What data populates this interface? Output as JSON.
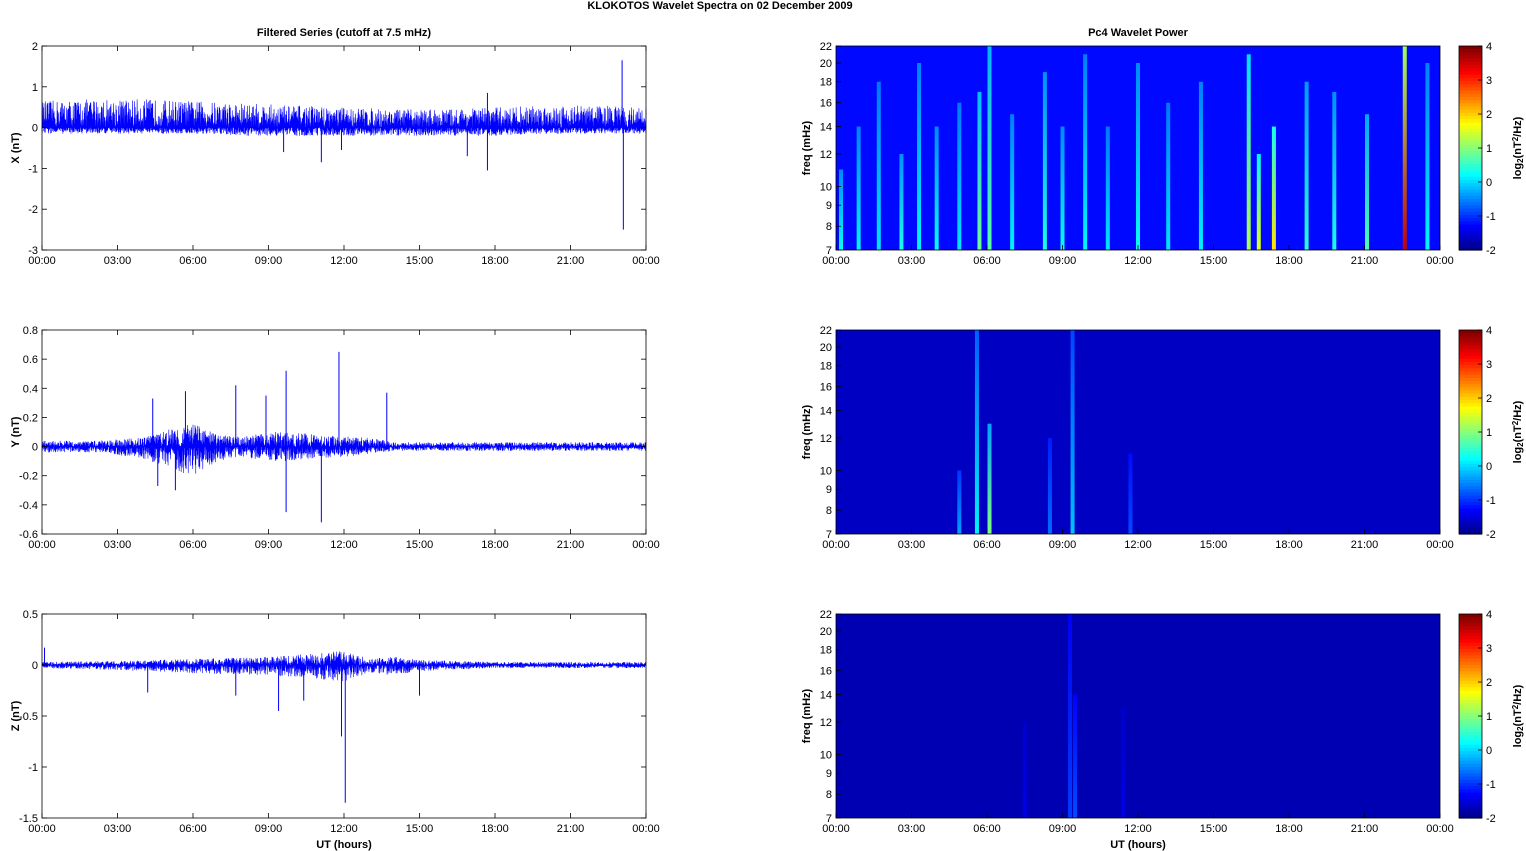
{
  "figure": {
    "title": "KLOKOTOS Wavelet Spectra on 02 December  2009",
    "left_title": "Filtered Series (cutoff at 7.5 mHz)",
    "right_title": "Pc4 Wavelet Power",
    "xlabel": "UT (hours)",
    "freq_label": "freq (mHz)",
    "colorbar_label_main": "log",
    "colorbar_label_sub": "2",
    "colorbar_label_tail": "(nT",
    "colorbar_label_sup": "2",
    "colorbar_label_end": "/Hz)"
  },
  "colors": {
    "trace": "#0000ff",
    "background_power": "#00008f",
    "axes": "#000000"
  },
  "chart_data": [
    {
      "type": "line",
      "panel": "X",
      "ylabel": "X (nT)",
      "xlim": [
        0,
        24
      ],
      "ylim": [
        -3,
        2
      ],
      "x_ticks": [
        "00:00",
        "03:00",
        "06:00",
        "09:00",
        "12:00",
        "15:00",
        "18:00",
        "21:00",
        "00:00"
      ],
      "y_ticks": [
        "2",
        "1",
        "0",
        "-1",
        "-2",
        "-3"
      ],
      "y_tick_values": [
        2,
        1,
        0,
        -1,
        -2,
        -3
      ],
      "noise_envelope": {
        "x": [
          0,
          2,
          4,
          6,
          8,
          10,
          12,
          14,
          16,
          18,
          20,
          22,
          24
        ],
        "upper": [
          0.65,
          0.7,
          0.7,
          0.65,
          0.6,
          0.55,
          0.5,
          0.45,
          0.45,
          0.5,
          0.55,
          0.55,
          0.5
        ],
        "lower": [
          -0.15,
          -0.15,
          -0.15,
          -0.15,
          -0.2,
          -0.2,
          -0.2,
          -0.2,
          -0.2,
          -0.2,
          -0.15,
          -0.15,
          -0.15
        ]
      },
      "spikes": [
        {
          "x": 9.6,
          "y": -0.6
        },
        {
          "x": 11.1,
          "y": -0.85
        },
        {
          "x": 11.9,
          "y": -0.55
        },
        {
          "x": 16.9,
          "y": -0.7
        },
        {
          "x": 17.7,
          "y": -1.05
        },
        {
          "x": 17.7,
          "y": 0.85
        },
        {
          "x": 23.05,
          "y": 1.65
        },
        {
          "x": 23.1,
          "y": -2.5
        }
      ]
    },
    {
      "type": "line",
      "panel": "Y",
      "ylabel": "Y (nT)",
      "xlim": [
        0,
        24
      ],
      "ylim": [
        -0.6,
        0.8
      ],
      "x_ticks": [
        "00:00",
        "03:00",
        "06:00",
        "09:00",
        "12:00",
        "15:00",
        "18:00",
        "21:00",
        "00:00"
      ],
      "y_ticks": [
        "0.8",
        "0.6",
        "0.4",
        "0.2",
        "0",
        "-0.2",
        "-0.4",
        "-0.6"
      ],
      "y_tick_values": [
        0.8,
        0.6,
        0.4,
        0.2,
        0,
        -0.2,
        -0.4,
        -0.6
      ],
      "noise_envelope": {
        "x": [
          0,
          2,
          4,
          5,
          6,
          7,
          8,
          9,
          10,
          11,
          12,
          13,
          14,
          16,
          18,
          20,
          22,
          24
        ],
        "upper": [
          0.04,
          0.04,
          0.06,
          0.12,
          0.16,
          0.08,
          0.07,
          0.1,
          0.1,
          0.08,
          0.07,
          0.06,
          0.03,
          0.03,
          0.03,
          0.03,
          0.03,
          0.03
        ],
        "lower": [
          -0.04,
          -0.04,
          -0.08,
          -0.15,
          -0.2,
          -0.1,
          -0.07,
          -0.1,
          -0.1,
          -0.08,
          -0.07,
          -0.05,
          -0.03,
          -0.03,
          -0.03,
          -0.03,
          -0.03,
          -0.03
        ]
      },
      "spikes": [
        {
          "x": 4.4,
          "y": 0.33
        },
        {
          "x": 4.6,
          "y": -0.27
        },
        {
          "x": 5.3,
          "y": -0.3
        },
        {
          "x": 5.7,
          "y": 0.38
        },
        {
          "x": 7.7,
          "y": 0.42
        },
        {
          "x": 8.9,
          "y": 0.35
        },
        {
          "x": 9.7,
          "y": 0.52
        },
        {
          "x": 9.7,
          "y": -0.45
        },
        {
          "x": 11.1,
          "y": -0.52
        },
        {
          "x": 11.8,
          "y": 0.65
        },
        {
          "x": 13.7,
          "y": 0.37
        }
      ]
    },
    {
      "type": "line",
      "panel": "Z",
      "ylabel": "Z (nT)",
      "xlim": [
        0,
        24
      ],
      "ylim": [
        -1.5,
        0.5
      ],
      "x_ticks": [
        "00:00",
        "03:00",
        "06:00",
        "09:00",
        "12:00",
        "15:00",
        "18:00",
        "21:00",
        "00:00"
      ],
      "y_ticks": [
        "0.5",
        "0",
        "-0.5",
        "-1",
        "-1.5"
      ],
      "y_tick_values": [
        0.5,
        0,
        -0.5,
        -1,
        -1.5
      ],
      "noise_envelope": {
        "x": [
          0,
          3,
          6,
          9,
          11,
          12,
          13,
          14,
          15,
          18,
          21,
          24
        ],
        "upper": [
          0.03,
          0.04,
          0.06,
          0.08,
          0.12,
          0.14,
          0.06,
          0.08,
          0.05,
          0.03,
          0.03,
          0.03
        ],
        "lower": [
          -0.03,
          -0.05,
          -0.08,
          -0.1,
          -0.14,
          -0.16,
          -0.08,
          -0.1,
          -0.06,
          -0.03,
          -0.03,
          -0.03
        ]
      },
      "spikes": [
        {
          "x": 0.1,
          "y": 0.17
        },
        {
          "x": 4.2,
          "y": -0.27
        },
        {
          "x": 7.7,
          "y": -0.3
        },
        {
          "x": 9.4,
          "y": -0.45
        },
        {
          "x": 10.4,
          "y": -0.35
        },
        {
          "x": 11.9,
          "y": -0.7
        },
        {
          "x": 12.05,
          "y": -1.35
        },
        {
          "x": 15.0,
          "y": -0.3
        }
      ]
    },
    {
      "type": "heatmap",
      "panel": "X power",
      "ylabel": "freq (mHz)",
      "xlim": [
        0,
        24
      ],
      "ylim": [
        7,
        22
      ],
      "y_ticks": [
        "22",
        "20",
        "18",
        "16",
        "14",
        "12",
        "10",
        "9",
        "8",
        "7"
      ],
      "y_tick_values": [
        22,
        20,
        18,
        16,
        14,
        12,
        10,
        9,
        8,
        7
      ],
      "x_ticks": [
        "00:00",
        "03:00",
        "06:00",
        "09:00",
        "12:00",
        "15:00",
        "18:00",
        "21:00",
        "00:00"
      ],
      "colorbar": {
        "ticks": [
          "4",
          "3",
          "2",
          "1",
          "0",
          "-1",
          "-2"
        ],
        "tick_values": [
          4,
          3,
          2,
          1,
          0,
          -1,
          -2
        ],
        "range": [
          -2,
          4
        ]
      },
      "background": -1.2,
      "streaks": [
        {
          "t": 0.2,
          "level": 0.3,
          "fmax": 11
        },
        {
          "t": 0.9,
          "level": 0.2,
          "fmax": 14
        },
        {
          "t": 1.7,
          "level": 0.1,
          "fmax": 18
        },
        {
          "t": 2.6,
          "level": 0.4,
          "fmax": 12
        },
        {
          "t": 3.3,
          "level": 0.2,
          "fmax": 20
        },
        {
          "t": 4.0,
          "level": 0.3,
          "fmax": 14
        },
        {
          "t": 4.9,
          "level": 0.1,
          "fmax": 16
        },
        {
          "t": 5.7,
          "level": 0.9,
          "fmax": 17
        },
        {
          "t": 6.1,
          "level": 0.8,
          "fmax": 22
        },
        {
          "t": 7.0,
          "level": 0.2,
          "fmax": 15
        },
        {
          "t": 8.3,
          "level": 0.4,
          "fmax": 19
        },
        {
          "t": 9.0,
          "level": 0.3,
          "fmax": 14
        },
        {
          "t": 9.9,
          "level": 0.2,
          "fmax": 21
        },
        {
          "t": 10.8,
          "level": 0.1,
          "fmax": 14
        },
        {
          "t": 12.0,
          "level": 0.3,
          "fmax": 20
        },
        {
          "t": 13.2,
          "level": 0.1,
          "fmax": 16
        },
        {
          "t": 14.5,
          "level": 0.2,
          "fmax": 18
        },
        {
          "t": 16.4,
          "level": 1.3,
          "fmax": 21
        },
        {
          "t": 16.8,
          "level": 1.6,
          "fmax": 12
        },
        {
          "t": 17.4,
          "level": 1.9,
          "fmax": 14
        },
        {
          "t": 18.7,
          "level": 0.5,
          "fmax": 18
        },
        {
          "t": 19.8,
          "level": 0.4,
          "fmax": 17
        },
        {
          "t": 21.1,
          "level": 0.7,
          "fmax": 15
        },
        {
          "t": 22.6,
          "level": 3.6,
          "fmax": 22
        },
        {
          "t": 23.5,
          "level": 0.2,
          "fmax": 20
        }
      ]
    },
    {
      "type": "heatmap",
      "panel": "Y power",
      "ylabel": "freq (mHz)",
      "xlim": [
        0,
        24
      ],
      "ylim": [
        7,
        22
      ],
      "y_ticks": [
        "22",
        "20",
        "18",
        "16",
        "14",
        "12",
        "10",
        "9",
        "8",
        "7"
      ],
      "y_tick_values": [
        22,
        20,
        18,
        16,
        14,
        12,
        10,
        9,
        8,
        7
      ],
      "x_ticks": [
        "00:00",
        "03:00",
        "06:00",
        "09:00",
        "12:00",
        "15:00",
        "18:00",
        "21:00",
        "00:00"
      ],
      "colorbar": {
        "ticks": [
          "4",
          "3",
          "2",
          "1",
          "0",
          "-1",
          "-2"
        ],
        "tick_values": [
          4,
          3,
          2,
          1,
          0,
          -1,
          -2
        ],
        "range": [
          -2,
          4
        ]
      },
      "background": -1.6,
      "streaks": [
        {
          "t": 4.9,
          "level": -0.3,
          "fmax": 10
        },
        {
          "t": 5.6,
          "level": 0.2,
          "fmax": 22
        },
        {
          "t": 6.1,
          "level": 1.0,
          "fmax": 13
        },
        {
          "t": 8.5,
          "level": -0.6,
          "fmax": 12
        },
        {
          "t": 9.4,
          "level": -0.1,
          "fmax": 22
        },
        {
          "t": 11.7,
          "level": -0.8,
          "fmax": 11
        }
      ]
    },
    {
      "type": "heatmap",
      "panel": "Z power",
      "ylabel": "freq (mHz)",
      "xlim": [
        0,
        24
      ],
      "ylim": [
        7,
        22
      ],
      "y_ticks": [
        "22",
        "20",
        "18",
        "16",
        "14",
        "12",
        "10",
        "9",
        "8",
        "7"
      ],
      "y_tick_values": [
        22,
        20,
        18,
        16,
        14,
        12,
        10,
        9,
        8,
        7
      ],
      "x_ticks": [
        "00:00",
        "03:00",
        "06:00",
        "09:00",
        "12:00",
        "15:00",
        "18:00",
        "21:00",
        "00:00"
      ],
      "colorbar": {
        "ticks": [
          "4",
          "3",
          "2",
          "1",
          "0",
          "-1",
          "-2"
        ],
        "tick_values": [
          4,
          3,
          2,
          1,
          0,
          -1,
          -2
        ],
        "range": [
          -2,
          4
        ]
      },
      "background": -1.7,
      "streaks": [
        {
          "t": 7.5,
          "level": -1.4,
          "fmax": 12
        },
        {
          "t": 9.3,
          "level": -0.9,
          "fmax": 22
        },
        {
          "t": 9.5,
          "level": -0.8,
          "fmax": 14
        },
        {
          "t": 11.4,
          "level": -1.4,
          "fmax": 13
        }
      ]
    }
  ]
}
